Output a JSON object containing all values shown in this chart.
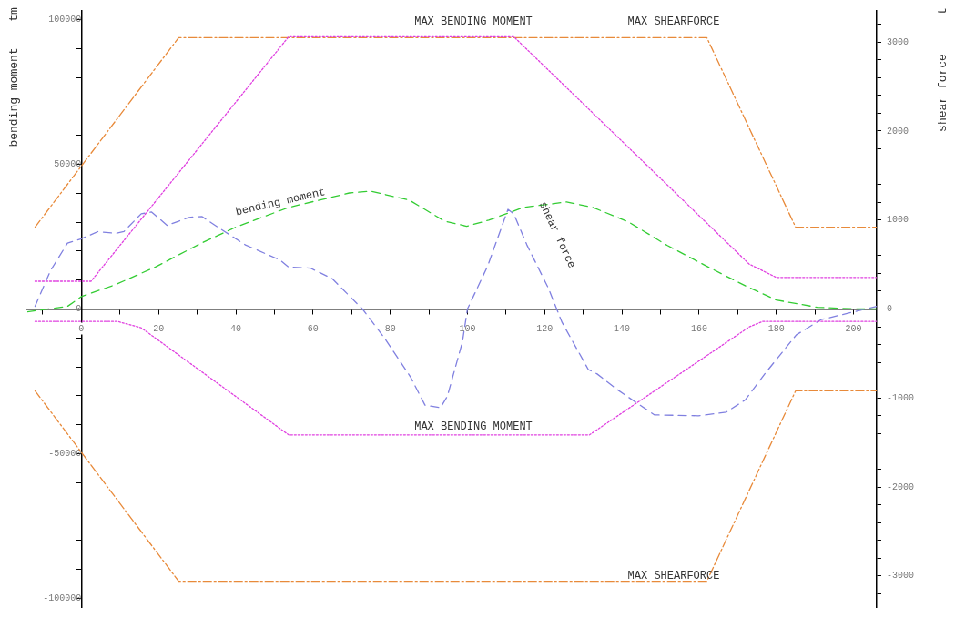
{
  "chart_data": {
    "type": "line",
    "ylabel": "bending moment",
    "y2label": "shear force",
    "xlim": [
      -14,
      206
    ],
    "ylim": [
      -103000,
      103000
    ],
    "y2lim": [
      -3350,
      3350
    ],
    "xticks": [
      {
        "value": -10,
        "label": null
      },
      0,
      {
        "value": 10,
        "label": null
      },
      20,
      {
        "value": 30,
        "label": null
      },
      40,
      {
        "value": 50,
        "label": null
      },
      60,
      {
        "value": 70,
        "label": null
      },
      80,
      {
        "value": 90,
        "label": null
      },
      100,
      {
        "value": 110,
        "label": null
      },
      120,
      {
        "value": 130,
        "label": null
      },
      140,
      {
        "value": 150,
        "label": null
      },
      160,
      {
        "value": 170,
        "label": null
      },
      180,
      {
        "value": 190,
        "label": null
      },
      200
    ],
    "yticks": [
      -100000,
      {
        "value": -90000,
        "label": null
      },
      {
        "value": -80000,
        "label": null
      },
      {
        "value": -70000,
        "label": null
      },
      {
        "value": -60000,
        "label": null
      },
      -50000,
      {
        "value": -40000,
        "label": null
      },
      {
        "value": -30000,
        "label": null
      },
      {
        "value": -20000,
        "label": null
      },
      {
        "value": -10000,
        "label": null
      },
      0,
      {
        "value": 10000,
        "label": null
      },
      {
        "value": 20000,
        "label": null
      },
      {
        "value": 30000,
        "label": null
      },
      {
        "value": 40000,
        "label": null
      },
      50000,
      {
        "value": 60000,
        "label": null
      },
      {
        "value": 70000,
        "label": null
      },
      {
        "value": 80000,
        "label": null
      },
      {
        "value": 90000,
        "label": null
      },
      100000
    ],
    "y2ticks": [
      {
        "value": -3200,
        "label": null
      },
      -3000,
      {
        "value": -2800,
        "label": null
      },
      {
        "value": -2600,
        "label": null
      },
      {
        "value": -2400,
        "label": null
      },
      {
        "value": -2200,
        "label": null
      },
      -2000,
      {
        "value": -1800,
        "label": null
      },
      {
        "value": -1600,
        "label": null
      },
      {
        "value": -1400,
        "label": null
      },
      {
        "value": -1200,
        "label": null
      },
      -1000,
      {
        "value": -800,
        "label": null
      },
      {
        "value": -600,
        "label": null
      },
      {
        "value": -400,
        "label": null
      },
      {
        "value": -200,
        "label": null
      },
      0,
      {
        "value": 200,
        "label": null
      },
      {
        "value": 400,
        "label": null
      },
      {
        "value": 600,
        "label": null
      },
      {
        "value": 800,
        "label": null
      },
      1000,
      {
        "value": 1200,
        "label": null
      },
      {
        "value": 1400,
        "label": null
      },
      {
        "value": 1600,
        "label": null
      },
      {
        "value": 1800,
        "label": null
      },
      2000,
      {
        "value": 2200,
        "label": null
      },
      {
        "value": 2400,
        "label": null
      },
      {
        "value": 2600,
        "label": null
      },
      {
        "value": 2800,
        "label": null
      },
      3000,
      {
        "value": 3200,
        "label": null
      }
    ],
    "grid": false,
    "legend": false,
    "marker": "none",
    "series": [
      {
        "color": "#e040e0",
        "line_style": "dotted",
        "x": [
          -12,
          2.5,
          53.7,
          112,
          173,
          180,
          206
        ],
        "values": [
          9600,
          9600,
          94100,
          94100,
          15500,
          10900,
          10900
        ]
      },
      {
        "color": "#e040e0",
        "line_style": "dotted",
        "x": [
          -12,
          9.4,
          15.5,
          53.7,
          131.6,
          173,
          176.5,
          206
        ],
        "values": [
          -4300,
          -4300,
          -6500,
          -43500,
          -43500,
          -6200,
          -4300,
          -4300
        ]
      },
      {
        "color": "#e88a3a",
        "line_style": "dashdot",
        "axis": "y2",
        "x": [
          -12,
          25.2,
          162,
          185,
          206
        ],
        "values": [
          920,
          3050,
          3050,
          920,
          920
        ]
      },
      {
        "color": "#e88a3a",
        "line_style": "dashdot",
        "axis": "y2",
        "x": [
          -12,
          25.2,
          162,
          185,
          206
        ],
        "values": [
          -920,
          -3060,
          -3060,
          -920,
          -920
        ]
      },
      {
        "color": "#33cc33",
        "line_style": "dashed",
        "x": [
          -14,
          -3.6,
          0,
          8.8,
          19.3,
          31,
          40,
          53.7,
          69.4,
          75,
          85,
          94,
          99.8,
          105.5,
          114.5,
          125.7,
          132.5,
          141.7,
          151.7,
          161.8,
          172.3,
          180,
          190.6,
          201.3,
          206
        ],
        "values": [
          -1000,
          900,
          4300,
          8400,
          14600,
          22700,
          28300,
          35100,
          40100,
          40700,
          37600,
          30400,
          28600,
          30700,
          35100,
          37000,
          35100,
          30100,
          22000,
          14900,
          7800,
          3100,
          600,
          0,
          0
        ]
      },
      {
        "color": "#8080e0",
        "line_style": "dashed",
        "axis": "y2",
        "x": [
          -12,
          -8,
          -3.6,
          0,
          4.3,
          8.8,
          11,
          15.5,
          18.2,
          22.2,
          27.9,
          31.2,
          35.7,
          42.5,
          51.5,
          53.7,
          59.3,
          65,
          72.8,
          78.4,
          85.2,
          89,
          93,
          94.8,
          98.7,
          100,
          105.2,
          110.5,
          112,
          115.4,
          121,
          124.5,
          131.3,
          133.6,
          138.6,
          148.4,
          159.8,
          167,
          172,
          177,
          185.2,
          191.6,
          206
        ],
        "values": [
          30,
          430,
          740,
          790,
          870,
          850,
          870,
          1070,
          1090,
          940,
          1030,
          1040,
          910,
          720,
          550,
          470,
          460,
          340,
          0,
          -320,
          -760,
          -1080,
          -1110,
          -980,
          -370,
          0,
          480,
          1120,
          1070,
          720,
          230,
          -150,
          -680,
          -730,
          -900,
          -1190,
          -1200,
          -1160,
          -1020,
          -730,
          -290,
          -120,
          30
        ]
      }
    ],
    "annotations": [
      "tm",
      "t",
      "MAX BENDING MOMENT",
      "MAX SHEARFORCE",
      "MAX BENDING MOMENT",
      "MAX SHEARFORCE",
      "bending moment",
      "shear force"
    ]
  }
}
